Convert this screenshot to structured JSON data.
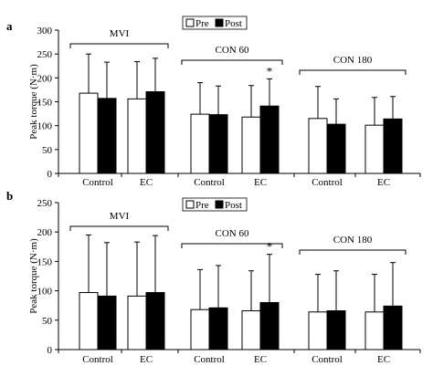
{
  "chart_data": [
    {
      "panel_label": "a",
      "type": "bar",
      "ylabel": "Peak torque (N·m)",
      "ylim": [
        0,
        300
      ],
      "yticks": [
        0,
        50,
        100,
        150,
        200,
        250,
        300
      ],
      "categories": [
        "Control",
        "EC",
        "Control",
        "EC",
        "Control",
        "EC"
      ],
      "groups": [
        {
          "label": "MVI",
          "categories": [
            0,
            1
          ]
        },
        {
          "label": "CON 60",
          "categories": [
            2,
            3
          ]
        },
        {
          "label": "CON 180",
          "categories": [
            4,
            5
          ]
        }
      ],
      "series": [
        {
          "name": "Pre",
          "values": [
            168,
            156,
            124,
            118,
            115,
            101
          ],
          "error_upper": [
            82,
            78,
            66,
            66,
            67,
            58
          ]
        },
        {
          "name": "Post",
          "values": [
            157,
            171,
            123,
            141,
            103,
            114
          ],
          "error_upper": [
            76,
            70,
            60,
            57,
            53,
            47
          ]
        }
      ],
      "annotations": [
        {
          "text": "*",
          "category": 3,
          "series": "Post"
        }
      ],
      "grid": false,
      "legend": {
        "position": "top",
        "entries": [
          "Pre",
          "Post"
        ]
      },
      "tick_labels": [
        "0",
        "50",
        "100",
        "150",
        "200",
        "250",
        "300"
      ]
    },
    {
      "panel_label": "b",
      "type": "bar",
      "ylabel": "Peak torque (N·m)",
      "ylim": [
        0,
        250
      ],
      "yticks": [
        0,
        50,
        100,
        150,
        200,
        250
      ],
      "categories": [
        "Control",
        "EC",
        "Control",
        "EC",
        "Control",
        "EC"
      ],
      "groups": [
        {
          "label": "MVI",
          "categories": [
            0,
            1
          ]
        },
        {
          "label": "CON 60",
          "categories": [
            2,
            3
          ]
        },
        {
          "label": "CON 180",
          "categories": [
            4,
            5
          ]
        }
      ],
      "series": [
        {
          "name": "Pre",
          "values": [
            97,
            91,
            68,
            66,
            64,
            64
          ],
          "error_upper": [
            98,
            92,
            68,
            68,
            64,
            64
          ]
        },
        {
          "name": "Post",
          "values": [
            91,
            97,
            71,
            80,
            66,
            74
          ],
          "error_upper": [
            91,
            97,
            72,
            82,
            68,
            74
          ]
        }
      ],
      "annotations": [
        {
          "text": "*",
          "category": 3,
          "series": "Post"
        }
      ],
      "grid": false,
      "legend": {
        "position": "top",
        "entries": [
          "Pre",
          "Post"
        ]
      },
      "tick_labels": [
        "0",
        "50",
        "100",
        "150",
        "200",
        "250"
      ]
    }
  ]
}
